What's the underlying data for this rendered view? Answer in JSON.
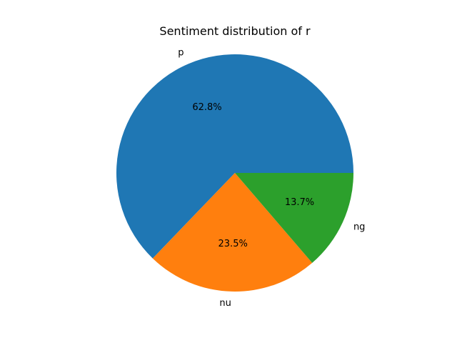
{
  "chart_data": {
    "type": "pie",
    "title": "Sentiment distribution of r",
    "slices": [
      {
        "label": "p",
        "value": 62.8,
        "pct_label": "62.8%",
        "color": "#1f77b4"
      },
      {
        "label": "nu",
        "value": 23.5,
        "pct_label": "23.5%",
        "color": "#ff7f0e"
      },
      {
        "label": "ng",
        "value": 13.7,
        "pct_label": "13.7%",
        "color": "#2ca02c"
      }
    ],
    "start_angle_deg": 0,
    "direction": "counterclockwise",
    "legend": "none"
  }
}
